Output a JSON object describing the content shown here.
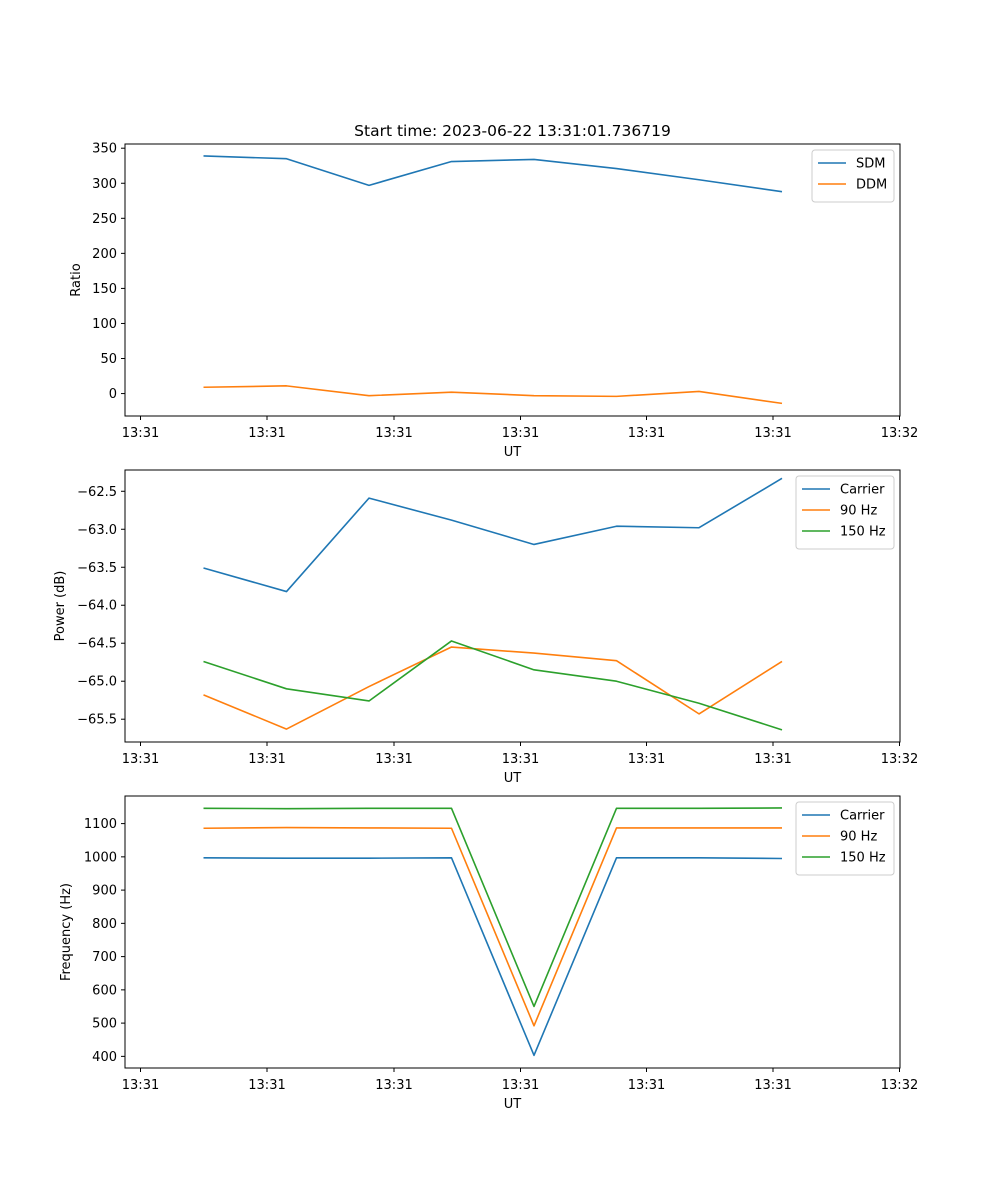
{
  "figure_title": "Start time: 2023-06-22 13:31:01.736719",
  "chart_data": [
    {
      "type": "line",
      "title": "Start time: 2023-06-22 13:31:01.736719",
      "xlabel": "UT",
      "ylabel": "Ratio",
      "x": [
        1,
        2,
        3,
        4,
        5,
        6,
        7,
        8
      ],
      "x_ticks": [
        "13:31",
        "13:31",
        "13:31",
        "13:31",
        "13:31",
        "13:31",
        "13:32"
      ],
      "yticks": [
        0,
        50,
        100,
        150,
        200,
        250,
        300,
        350
      ],
      "ylim": [
        -32,
        356
      ],
      "legend_position": "top-right",
      "grid": false,
      "series": [
        {
          "name": "SDM",
          "color": "#1f77b4",
          "values": [
            339,
            335,
            297,
            331,
            334,
            321,
            305,
            288
          ]
        },
        {
          "name": "DDM",
          "color": "#ff7f0e",
          "values": [
            9,
            11,
            -3,
            2,
            -3,
            -4,
            3,
            -14
          ]
        }
      ]
    },
    {
      "type": "line",
      "xlabel": "UT",
      "ylabel": "Power (dB)",
      "x": [
        1,
        2,
        3,
        4,
        5,
        6,
        7,
        8
      ],
      "x_ticks": [
        "13:31",
        "13:31",
        "13:31",
        "13:31",
        "13:31",
        "13:31",
        "13:32"
      ],
      "yticks": [
        -65.5,
        -65.0,
        -64.5,
        -64.0,
        -63.5,
        -63.0,
        -62.5
      ],
      "ytick_labels": [
        "−65.5",
        "−65.0",
        "−64.5",
        "−64.0",
        "−63.5",
        "−63.0",
        "−62.5"
      ],
      "ylim": [
        -65.8,
        -62.22
      ],
      "legend_position": "top-right",
      "grid": false,
      "series": [
        {
          "name": "Carrier",
          "color": "#1f77b4",
          "values": [
            -63.51,
            -63.82,
            -62.59,
            -62.88,
            -63.2,
            -62.96,
            -62.98,
            -62.33
          ]
        },
        {
          "name": "90 Hz",
          "color": "#ff7f0e",
          "values": [
            -65.18,
            -65.63,
            -65.07,
            -64.55,
            -64.63,
            -64.73,
            -65.43,
            -64.74
          ]
        },
        {
          "name": "150 Hz",
          "color": "#2ca02c",
          "values": [
            -64.74,
            -65.1,
            -65.26,
            -64.47,
            -64.85,
            -65.0,
            -65.29,
            -65.64
          ]
        }
      ]
    },
    {
      "type": "line",
      "xlabel": "UT",
      "ylabel": "Frequency (Hz)",
      "x": [
        1,
        2,
        3,
        4,
        5,
        6,
        7,
        8
      ],
      "x_ticks": [
        "13:31",
        "13:31",
        "13:31",
        "13:31",
        "13:31",
        "13:31",
        "13:32"
      ],
      "yticks": [
        400,
        500,
        600,
        700,
        800,
        900,
        1000,
        1100
      ],
      "ylim": [
        365,
        1183
      ],
      "legend_position": "top-right",
      "grid": false,
      "series": [
        {
          "name": "Carrier",
          "color": "#1f77b4",
          "values": [
            997,
            996,
            996,
            997,
            403,
            997,
            997,
            995
          ]
        },
        {
          "name": "90 Hz",
          "color": "#ff7f0e",
          "values": [
            1086,
            1088,
            1087,
            1086,
            492,
            1087,
            1087,
            1087
          ]
        },
        {
          "name": "150 Hz",
          "color": "#2ca02c",
          "values": [
            1146,
            1145,
            1146,
            1146,
            550,
            1146,
            1146,
            1147
          ]
        }
      ]
    }
  ]
}
